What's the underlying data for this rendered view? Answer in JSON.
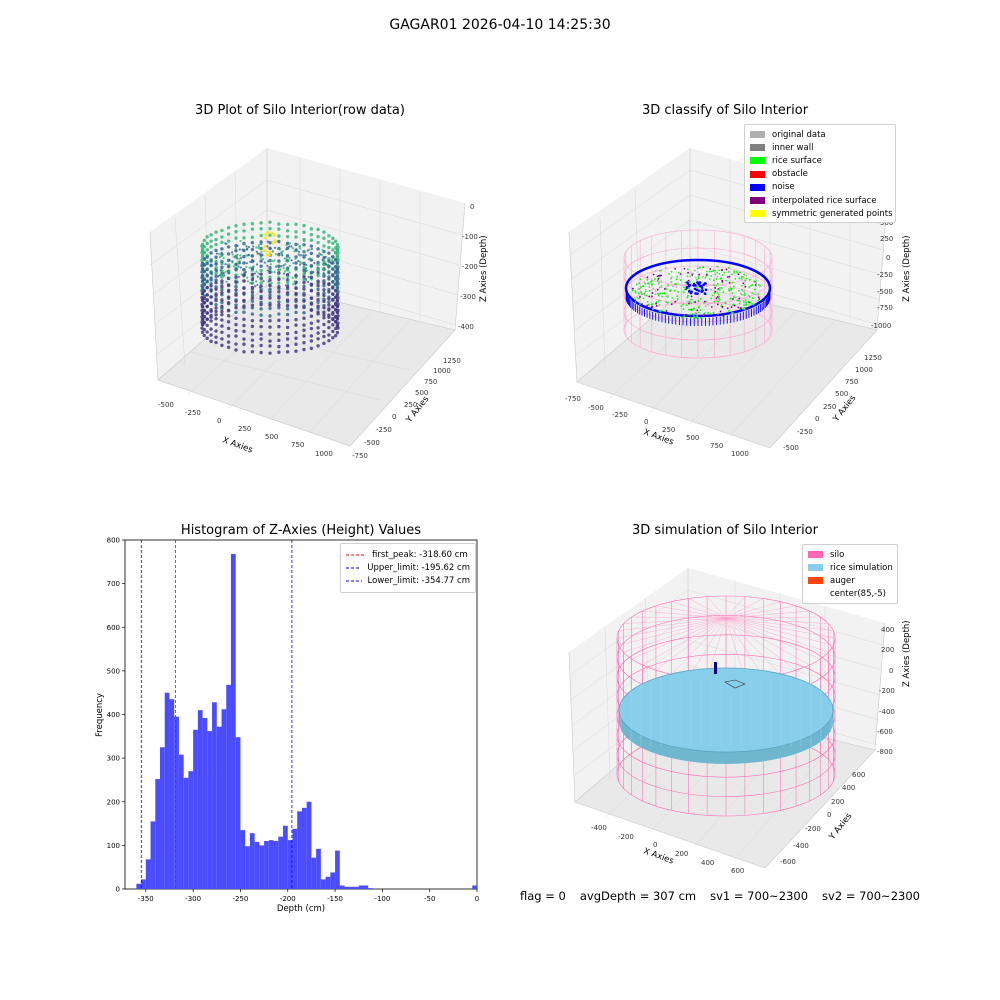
{
  "suptitle": "GAGAR01 2026-04-10 14:25:30",
  "status": {
    "flag": "flag = 0",
    "avg_depth": "avgDepth = 307 cm",
    "sv1": "sv1 = 700~2300",
    "sv2": "sv2 = 700~2300"
  },
  "chart_data": [
    {
      "id": "raw",
      "type": "scatter3d",
      "title": "3D Plot of Silo Interior(row data)",
      "xlabel": "X Axies",
      "ylabel": "Y Axies",
      "zlabel": "Z Axies (Depth)",
      "x_ticks": [
        "-500",
        "-250",
        "0",
        "250",
        "500",
        "750",
        "1000"
      ],
      "y_ticks": [
        "-750",
        "-500",
        "-250",
        "0",
        "250",
        "500",
        "750",
        "1000",
        "1250"
      ],
      "z_ticks": [
        "0",
        "-100",
        "-200",
        "-300",
        "-400"
      ],
      "colormap": [
        "#fde725",
        "#35b779",
        "#31688e",
        "#443983"
      ]
    },
    {
      "id": "classify",
      "type": "scatter3d",
      "title": "3D classify of Silo Interior",
      "xlabel": "X Axies",
      "ylabel": "Y Axies",
      "zlabel": "Z Axies (Depth)",
      "x_ticks": [
        "-750",
        "-500",
        "-250",
        "0",
        "250",
        "500",
        "750",
        "1000"
      ],
      "y_ticks": [
        "-500",
        "-250",
        "0",
        "250",
        "500",
        "750",
        "1000",
        "1250"
      ],
      "z_ticks": [
        "750",
        "500",
        "250",
        "0",
        "-250",
        "-500",
        "-750",
        "-1000"
      ],
      "legend": [
        {
          "label": "original data",
          "color": "#b0b0b0"
        },
        {
          "label": "inner wall",
          "color": "#808080"
        },
        {
          "label": "rice surface",
          "color": "#00ff00"
        },
        {
          "label": "obstacle",
          "color": "#ff0000"
        },
        {
          "label": "noise",
          "color": "#0000ff"
        },
        {
          "label": "interpolated rice surface",
          "color": "#800080"
        },
        {
          "label": "symmetric generated points",
          "color": "#ffff00"
        }
      ]
    },
    {
      "id": "histogram",
      "type": "bar",
      "title": "Histogram of Z-Axies (Height) Values",
      "xlabel": "Depth (cm)",
      "ylabel": "Frequency",
      "xlim": [
        -372,
        0
      ],
      "ylim": [
        0,
        800
      ],
      "x_ticks": [
        -350,
        -300,
        -250,
        -200,
        -150,
        -100,
        -50,
        0
      ],
      "y_ticks": [
        0,
        100,
        200,
        300,
        400,
        500,
        600,
        700,
        800
      ],
      "bar_color": "#4c4cff",
      "bin_edges": [
        -360.0,
        -355.0,
        -350.0,
        -345.0,
        -340.0,
        -335.0,
        -330.0,
        -325.0,
        -320.0,
        -315.0,
        -310.0,
        -305.0,
        -300.0,
        -295.0,
        -290.0,
        -285.0,
        -280.0,
        -275.0,
        -270.0,
        -265.0,
        -260.0,
        -255.0,
        -250.0,
        -245.0,
        -240.0,
        -235.0,
        -230.0,
        -225.0,
        -220.0,
        -215.0,
        -210.0,
        -205.0,
        -200.0,
        -195.0,
        -190.0,
        -185.0,
        -180.0,
        -175.0,
        -170.0,
        -165.0,
        -160.0,
        -155.0,
        -150.0,
        -145.0,
        -140.0,
        -135.0,
        -130.0,
        -125.0,
        -120.0,
        -115.0,
        -110.0,
        -105.0,
        -100.0,
        -95.0,
        -90.0,
        -85.0,
        -80.0,
        -75.0,
        -70.0,
        -65.0,
        -60.0,
        -55.0,
        -50.0,
        -45.0,
        -40.0,
        -35.0,
        -30.0,
        -25.0,
        -20.0,
        -15.0,
        -10.0,
        -5.0,
        0.0
      ],
      "values": [
        12,
        22,
        68,
        155,
        252,
        325,
        450,
        435,
        395,
        308,
        255,
        270,
        365,
        410,
        392,
        362,
        428,
        372,
        412,
        468,
        768,
        348,
        135,
        98,
        128,
        108,
        100,
        110,
        112,
        110,
        120,
        145,
        112,
        138,
        178,
        186,
        200,
        72,
        92,
        22,
        28,
        38,
        88,
        8,
        5,
        5,
        5,
        8,
        8,
        2,
        0,
        0,
        0,
        0,
        0,
        0,
        0,
        0,
        0,
        0,
        0,
        0,
        0,
        0,
        0,
        0,
        0,
        0,
        0,
        0,
        0,
        8
      ],
      "vlines": [
        {
          "label": "first_peak: -318.60 cm",
          "x": -318.6,
          "color": "#ff0000"
        },
        {
          "label": "Upper_limit: -195.62 cm",
          "x": -195.62,
          "color": "#0000ff"
        },
        {
          "label": "Lower_limit: -354.77 cm",
          "x": -354.77,
          "color": "#0000ff"
        }
      ]
    },
    {
      "id": "simulation",
      "type": "surface3d",
      "title": "3D simulation of Silo Interior",
      "xlabel": "X Axies",
      "ylabel": "Y Axies",
      "zlabel": "Z Axies (Depth)",
      "x_ticks": [
        "-400",
        "-200",
        "0",
        "200",
        "400",
        "600"
      ],
      "y_ticks": [
        "-600",
        "-400",
        "-200",
        "0",
        "200",
        "400",
        "600"
      ],
      "z_ticks": [
        "400",
        "200",
        "0",
        "-200",
        "-400",
        "-600",
        "-800"
      ],
      "legend": [
        {
          "label": "silo",
          "color": "#ff69b4"
        },
        {
          "label": "rice simulation",
          "color": "#87ceeb"
        },
        {
          "label": "auger",
          "color": "#ff4500"
        },
        {
          "label": "center(85,-5)",
          "color": "#ffffff"
        }
      ]
    }
  ]
}
